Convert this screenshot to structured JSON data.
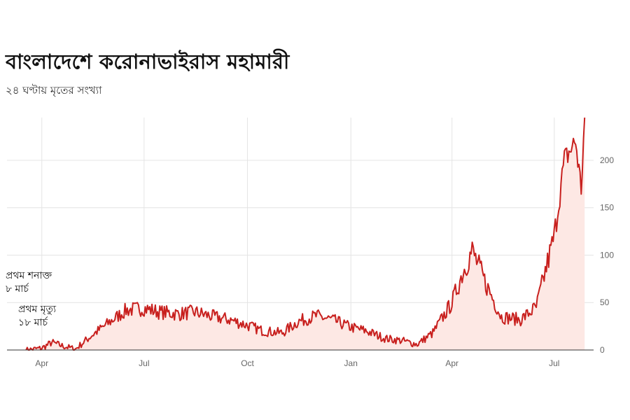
{
  "title": "বাংলাদেশে করোনাভাইরাস মহামারী",
  "subtitle": "২৪ ঘণ্টায় মৃতের সংখ্যা",
  "chart_data": {
    "type": "area",
    "x_ticks": [
      "Apr",
      "Jul",
      "Oct",
      "Jan",
      "Apr",
      "Jul"
    ],
    "y_ticks": [
      0,
      50,
      100,
      150,
      200
    ],
    "ylim": [
      0,
      245
    ],
    "y_axis_side": "right",
    "grid": true,
    "line_color": "#c8201e",
    "fill_color": "#fde8e4",
    "annotations": [
      {
        "line1": "প্রথম শনাক্ত",
        "line2": "৮ মার্চ"
      },
      {
        "line1": "প্রথম মৃত্যু",
        "line2": "১৮ মার্চ"
      }
    ],
    "x": [
      "2020-03-18",
      "2020-04-01",
      "2020-04-10",
      "2020-04-20",
      "2020-05-01",
      "2020-05-15",
      "2020-06-01",
      "2020-06-15",
      "2020-07-01",
      "2020-07-15",
      "2020-08-01",
      "2020-08-15",
      "2020-09-01",
      "2020-09-15",
      "2020-10-01",
      "2020-10-15",
      "2020-11-01",
      "2020-11-15",
      "2020-12-01",
      "2020-12-15",
      "2021-01-01",
      "2021-01-15",
      "2021-02-01",
      "2021-02-15",
      "2021-03-01",
      "2021-03-15",
      "2021-04-01",
      "2021-04-10",
      "2021-04-19",
      "2021-05-01",
      "2021-05-15",
      "2021-06-01",
      "2021-06-15",
      "2021-07-01",
      "2021-07-10",
      "2021-07-20",
      "2021-07-25",
      "2021-07-28"
    ],
    "values": [
      0,
      2,
      8,
      4,
      1,
      15,
      30,
      42,
      44,
      40,
      38,
      40,
      35,
      32,
      26,
      20,
      18,
      30,
      36,
      32,
      24,
      20,
      12,
      10,
      6,
      18,
      50,
      80,
      105,
      70,
      35,
      32,
      45,
      120,
      200,
      220,
      170,
      245
    ]
  }
}
